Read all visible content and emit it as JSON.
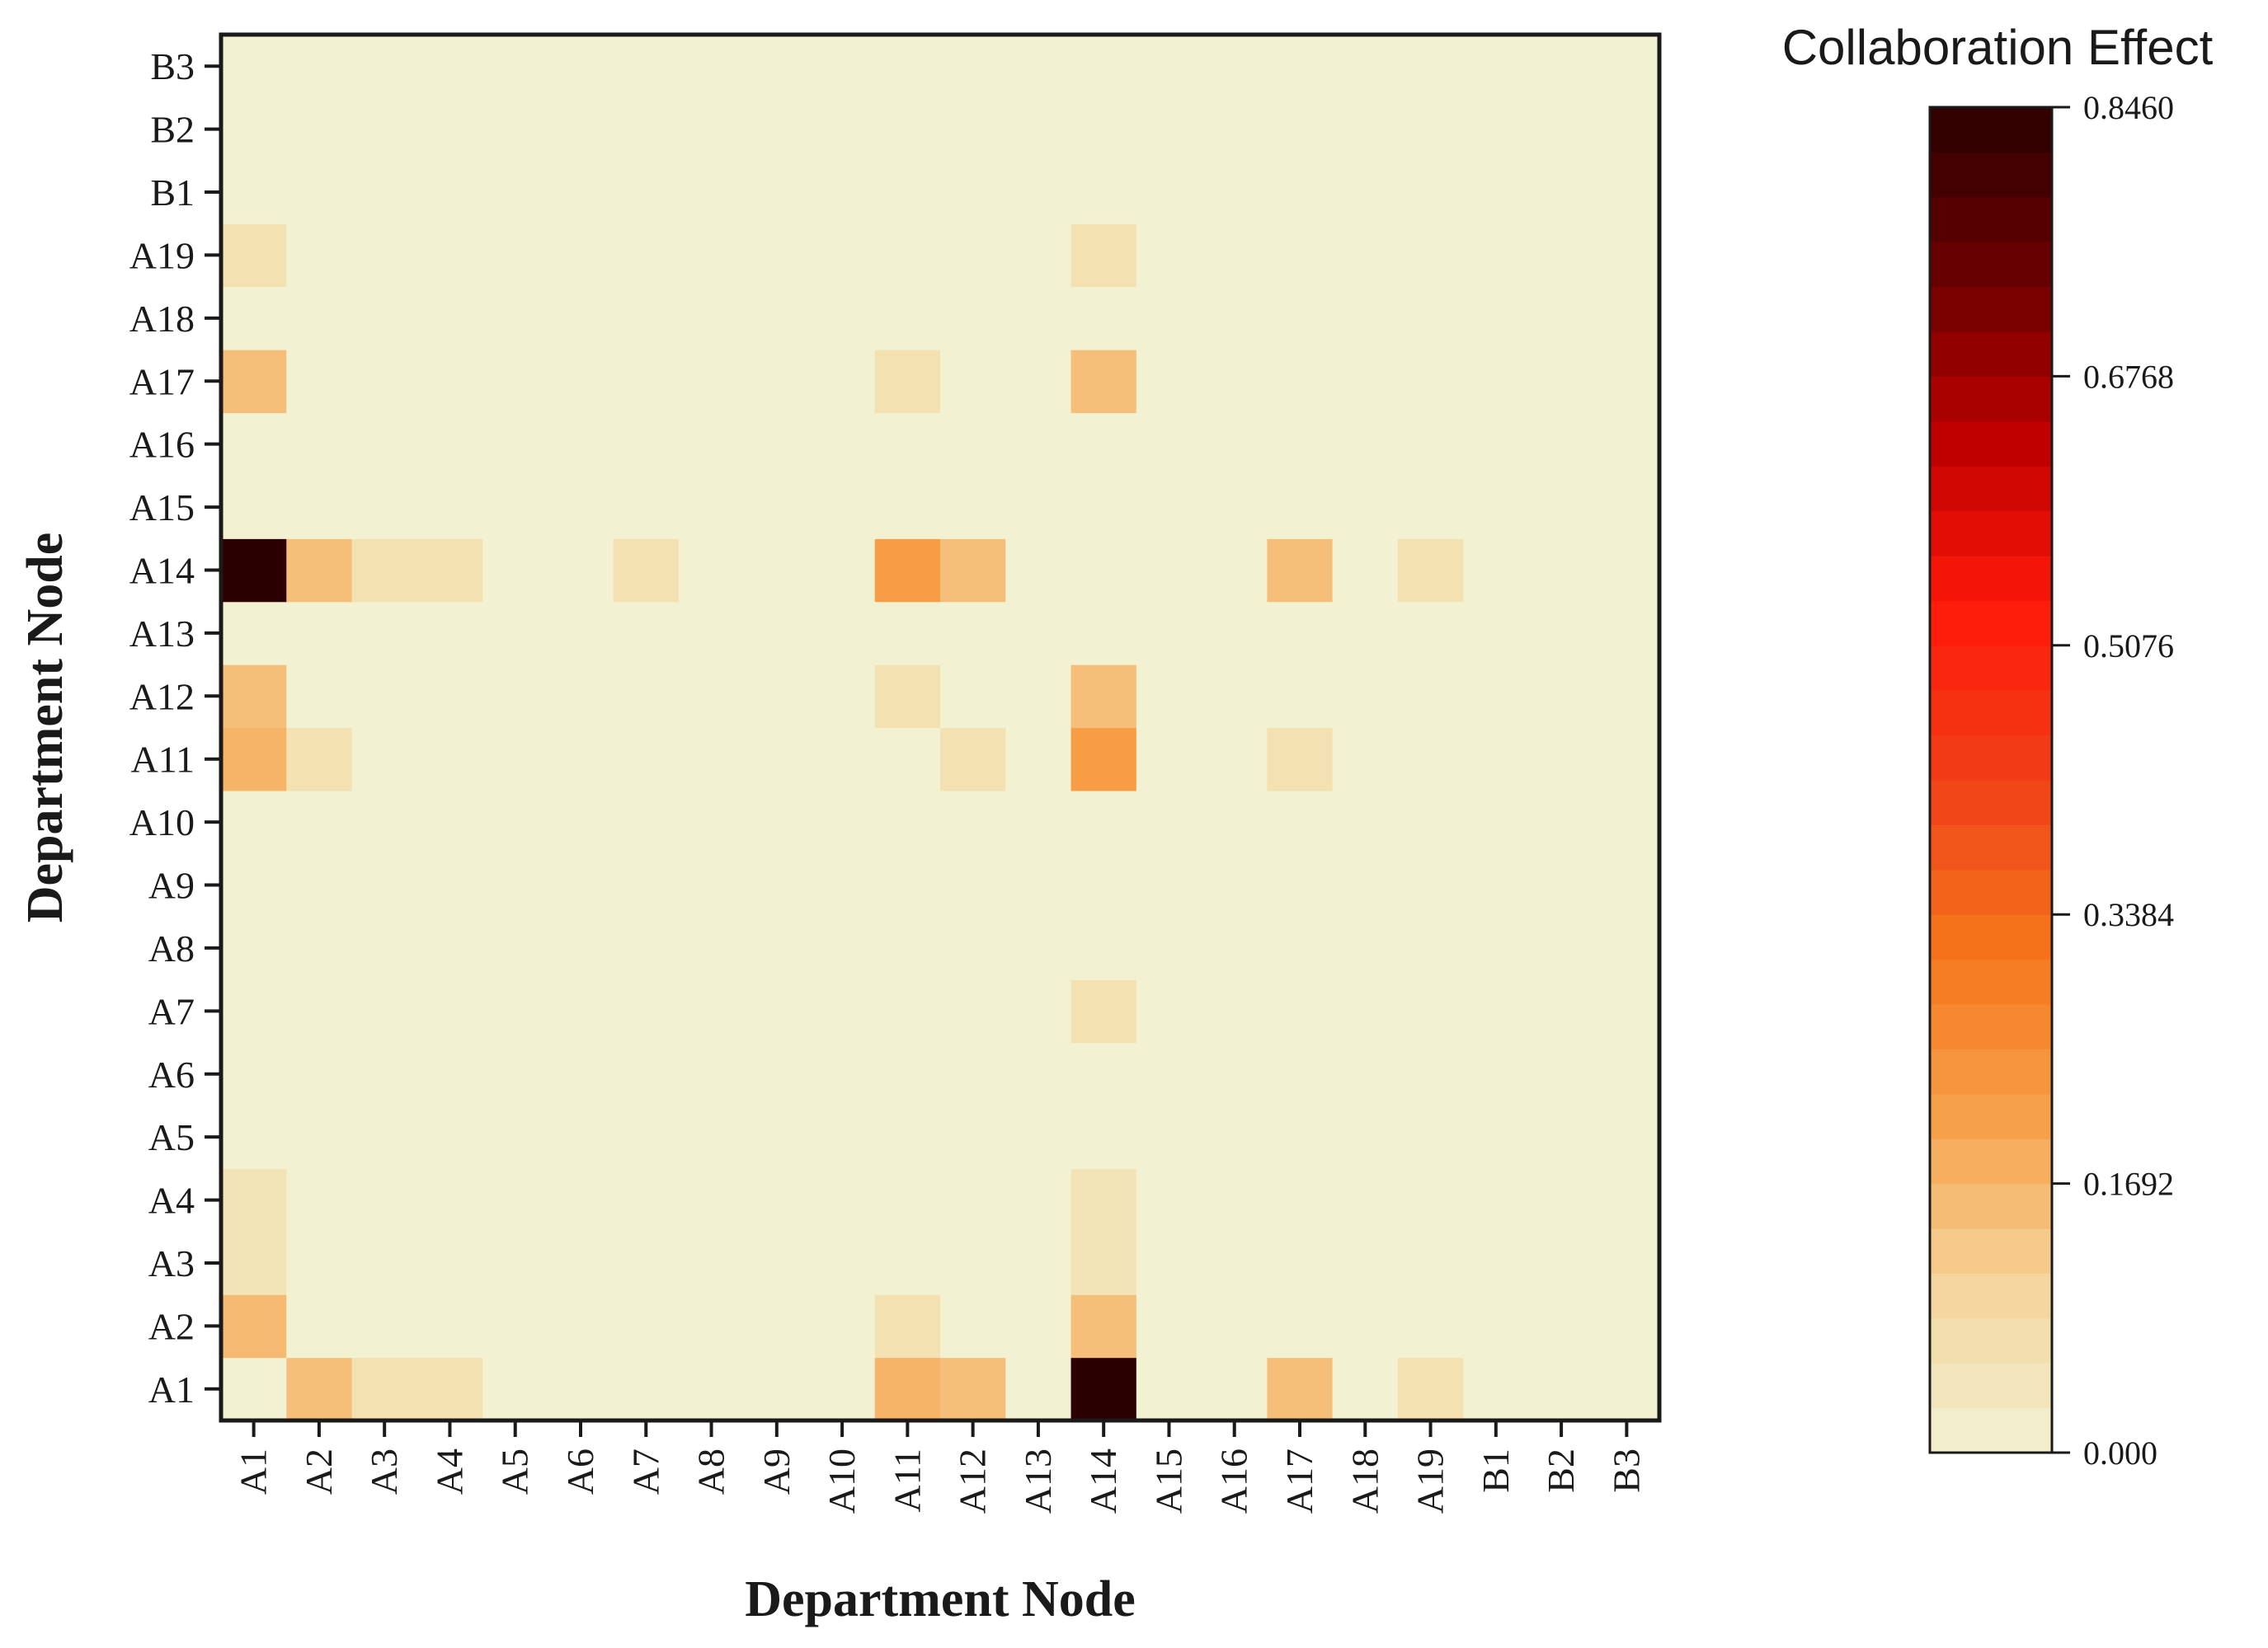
{
  "chart_data": {
    "type": "heatmap",
    "xlabel": "Department Node",
    "ylabel": "Department Node",
    "colorbar": {
      "title": "Collaboration Effect",
      "min": 0.0,
      "max": 0.846,
      "tick_values": [
        0.0,
        0.1692,
        0.3384,
        0.5076,
        0.6768,
        0.846
      ],
      "tick_labels": [
        "0.000",
        "0.1692",
        "0.3384",
        "0.5076",
        "0.6768",
        "0.8460"
      ],
      "bands": 30,
      "colors": [
        "#f2f2d2",
        "#f4d49a",
        "#f7a04a",
        "#f5751a",
        "#f04018",
        "#ff1a0a",
        "#c00000",
        "#6a0000",
        "#2a0000"
      ]
    },
    "categories": [
      "A1",
      "A2",
      "A3",
      "A4",
      "A5",
      "A6",
      "A7",
      "A8",
      "A9",
      "A10",
      "A11",
      "A12",
      "A13",
      "A14",
      "A15",
      "A16",
      "A17",
      "A18",
      "A19",
      "B1",
      "B2",
      "B3"
    ],
    "cells": [
      {
        "row": "A1",
        "col": "A2",
        "value": 0.15
      },
      {
        "row": "A1",
        "col": "A3",
        "value": 0.06
      },
      {
        "row": "A1",
        "col": "A4",
        "value": 0.06
      },
      {
        "row": "A1",
        "col": "A11",
        "value": 0.17
      },
      {
        "row": "A1",
        "col": "A12",
        "value": 0.15
      },
      {
        "row": "A1",
        "col": "A14",
        "value": 0.846
      },
      {
        "row": "A1",
        "col": "A17",
        "value": 0.15
      },
      {
        "row": "A1",
        "col": "A19",
        "value": 0.06
      },
      {
        "row": "A2",
        "col": "A1",
        "value": 0.16
      },
      {
        "row": "A2",
        "col": "A11",
        "value": 0.06
      },
      {
        "row": "A2",
        "col": "A14",
        "value": 0.15
      },
      {
        "row": "A3",
        "col": "A1",
        "value": 0.05
      },
      {
        "row": "A3",
        "col": "A14",
        "value": 0.05
      },
      {
        "row": "A4",
        "col": "A1",
        "value": 0.05
      },
      {
        "row": "A4",
        "col": "A14",
        "value": 0.05
      },
      {
        "row": "A7",
        "col": "A14",
        "value": 0.06
      },
      {
        "row": "A11",
        "col": "A1",
        "value": 0.17
      },
      {
        "row": "A11",
        "col": "A2",
        "value": 0.06
      },
      {
        "row": "A11",
        "col": "A12",
        "value": 0.06
      },
      {
        "row": "A11",
        "col": "A14",
        "value": 0.22
      },
      {
        "row": "A11",
        "col": "A17",
        "value": 0.06
      },
      {
        "row": "A12",
        "col": "A1",
        "value": 0.15
      },
      {
        "row": "A12",
        "col": "A11",
        "value": 0.06
      },
      {
        "row": "A12",
        "col": "A14",
        "value": 0.15
      },
      {
        "row": "A14",
        "col": "A1",
        "value": 0.846
      },
      {
        "row": "A14",
        "col": "A2",
        "value": 0.15
      },
      {
        "row": "A14",
        "col": "A3",
        "value": 0.06
      },
      {
        "row": "A14",
        "col": "A4",
        "value": 0.06
      },
      {
        "row": "A14",
        "col": "A7",
        "value": 0.06
      },
      {
        "row": "A14",
        "col": "A11",
        "value": 0.22
      },
      {
        "row": "A14",
        "col": "A12",
        "value": 0.15
      },
      {
        "row": "A14",
        "col": "A17",
        "value": 0.15
      },
      {
        "row": "A14",
        "col": "A19",
        "value": 0.06
      },
      {
        "row": "A17",
        "col": "A1",
        "value": 0.15
      },
      {
        "row": "A17",
        "col": "A11",
        "value": 0.06
      },
      {
        "row": "A17",
        "col": "A14",
        "value": 0.15
      },
      {
        "row": "A19",
        "col": "A1",
        "value": 0.06
      },
      {
        "row": "A19",
        "col": "A14",
        "value": 0.06
      }
    ]
  }
}
